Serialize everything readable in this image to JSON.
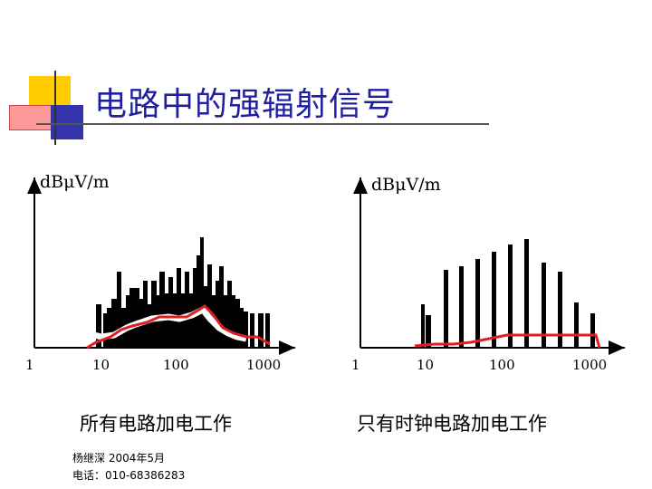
{
  "title": "电路中的强辐射信号",
  "left_chart": {
    "ylabel": "dBμV/m",
    "ticks": [
      "1",
      "10",
      "100",
      "1000"
    ],
    "caption": "所有电路加电工作"
  },
  "right_chart": {
    "ylabel": "dBμV/m",
    "ticks": [
      "1",
      "10",
      "100",
      "1000"
    ],
    "caption": "只有时钟电路加电工作"
  },
  "footer": {
    "line1": "杨继深  2004年5月",
    "line2": "电话：010-68386283"
  },
  "colors": {
    "title": "#1f1f9f",
    "envelope": "#e02020",
    "bars": "#000000"
  }
}
